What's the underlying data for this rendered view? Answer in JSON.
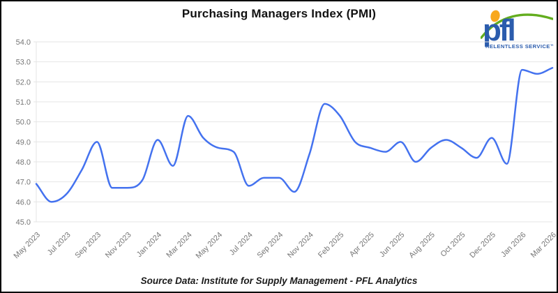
{
  "header": {
    "title": "Purchasing Managers Index (PMI)"
  },
  "logo": {
    "text": "pfl",
    "tagline": "RELENTLESS SERVICE™",
    "colors": {
      "blue": "#2b5cad",
      "green": "#63ad1e",
      "orange": "#f8a81d"
    }
  },
  "footer": {
    "text": "Source Data: Institute for Supply Management - PFL Analytics"
  },
  "chart_data": {
    "type": "line",
    "title": "Purchasing Managers Index (PMI)",
    "series_name": "PMI",
    "x_tick_labels": [
      "May 2023",
      "Jul 2023",
      "Sep 2023",
      "Nov 2023",
      "Jan 2024",
      "Mar 2024",
      "May 2024",
      "Jul 2024",
      "Sep 2024",
      "Nov 2024",
      "Feb 2025",
      "Apr 2025",
      "Jun 2025",
      "Aug 2025",
      "Oct 2025",
      "Dec 2025",
      "Jan 2026",
      "Mar 2026"
    ],
    "x_tick_every": 2,
    "values": [
      46.9,
      46.0,
      46.4,
      47.6,
      49.0,
      46.7,
      46.7,
      47.1,
      49.1,
      47.8,
      50.3,
      49.2,
      48.7,
      48.5,
      46.8,
      47.2,
      47.2,
      46.5,
      48.4,
      50.9,
      50.3,
      49.0,
      48.7,
      48.5,
      49.0,
      48.0,
      48.7,
      49.1,
      48.7,
      48.2,
      49.2,
      47.9,
      52.6,
      52.4,
      52.7
    ],
    "ylim": [
      45.0,
      54.0
    ],
    "y_ticks": [
      "54.0",
      "53.0",
      "52.0",
      "51.0",
      "50.0",
      "49.0",
      "48.0",
      "47.0",
      "46.0",
      "45.0"
    ],
    "grid": "horizontal",
    "legend": "none",
    "colors": {
      "line": "#4472ef",
      "grid": "#e4e4e4",
      "axis_text": "#767676"
    }
  }
}
